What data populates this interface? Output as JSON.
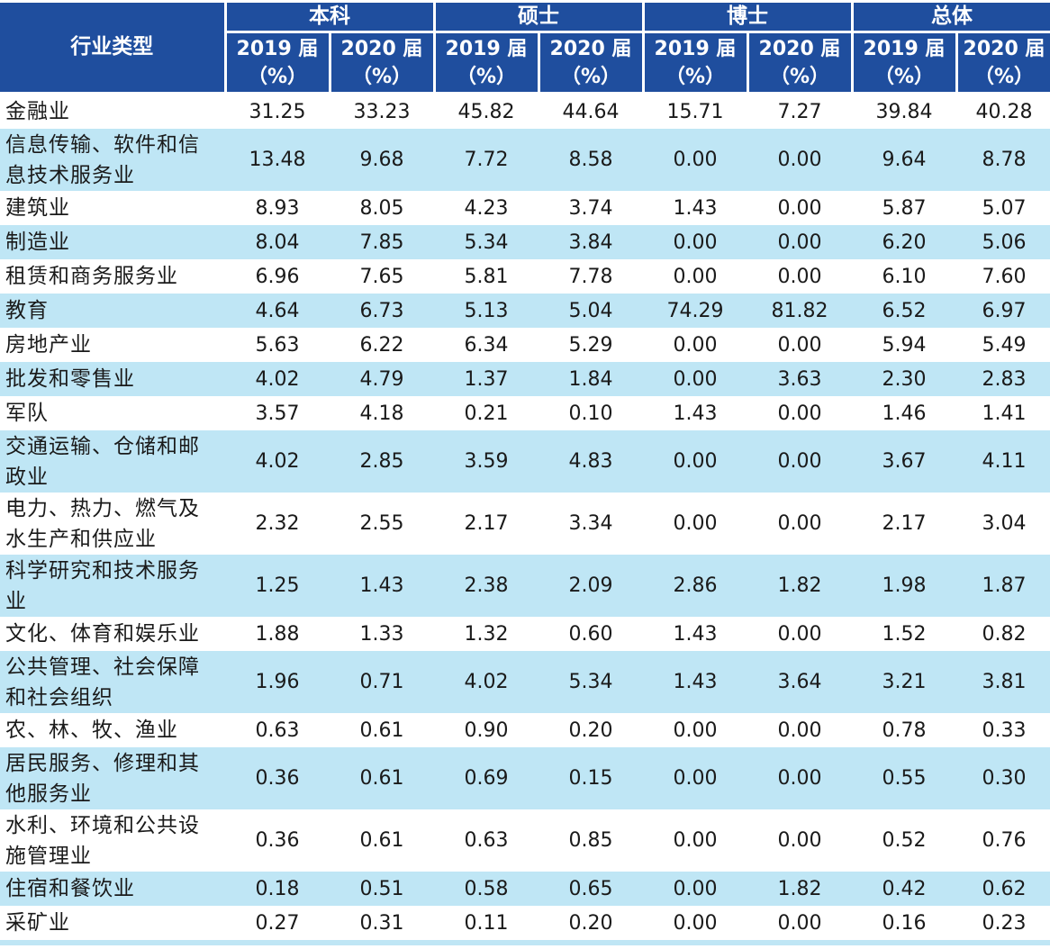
{
  "table": {
    "header": {
      "label": "行业类型",
      "groups": [
        "本科",
        "硕士",
        "博士",
        "总体"
      ],
      "sub": [
        {
          "year": "2019 届",
          "unit": "（%）"
        },
        {
          "year": "2020 届",
          "unit": "（%）"
        },
        {
          "year": "2019 届",
          "unit": "（%）"
        },
        {
          "year": "2020 届",
          "unit": "（%）"
        },
        {
          "year": "2019 届",
          "unit": "（%）"
        },
        {
          "year": "2020 届",
          "unit": "（%）"
        },
        {
          "year": "2019 届",
          "unit": "（%）"
        },
        {
          "year": "2020 届",
          "unit": "（%）"
        }
      ]
    },
    "rows": [
      {
        "label": "金融业",
        "values": [
          "31.25",
          "33.23",
          "45.82",
          "44.64",
          "15.71",
          "7.27",
          "39.84",
          "40.28"
        ]
      },
      {
        "label": "信息传输、软件和信息技术服务业",
        "values": [
          "13.48",
          "9.68",
          "7.72",
          "8.58",
          "0.00",
          "0.00",
          "9.64",
          "8.78"
        ]
      },
      {
        "label": "建筑业",
        "values": [
          "8.93",
          "8.05",
          "4.23",
          "3.74",
          "1.43",
          "0.00",
          "5.87",
          "5.07"
        ]
      },
      {
        "label": "制造业",
        "values": [
          "8.04",
          "7.85",
          "5.34",
          "3.84",
          "0.00",
          "0.00",
          "6.20",
          "5.06"
        ]
      },
      {
        "label": "租赁和商务服务业",
        "values": [
          "6.96",
          "7.65",
          "5.81",
          "7.78",
          "0.00",
          "0.00",
          "6.10",
          "7.60"
        ]
      },
      {
        "label": "教育",
        "values": [
          "4.64",
          "6.73",
          "5.13",
          "5.04",
          "74.29",
          "81.82",
          "6.52",
          "6.97"
        ]
      },
      {
        "label": "房地产业",
        "values": [
          "5.63",
          "6.22",
          "6.34",
          "5.29",
          "0.00",
          "0.00",
          "5.94",
          "5.49"
        ]
      },
      {
        "label": "批发和零售业",
        "values": [
          "4.02",
          "4.79",
          "1.37",
          "1.84",
          "0.00",
          "3.63",
          "2.30",
          "2.83"
        ]
      },
      {
        "label": "军队",
        "values": [
          "3.57",
          "4.18",
          "0.21",
          "0.10",
          "1.43",
          "0.00",
          "1.46",
          "1.41"
        ]
      },
      {
        "label": "交通运输、仓储和邮政业",
        "values": [
          "4.02",
          "2.85",
          "3.59",
          "4.83",
          "0.00",
          "0.00",
          "3.67",
          "4.11"
        ]
      },
      {
        "label": "电力、热力、燃气及水生产和供应业",
        "values": [
          "2.32",
          "2.55",
          "2.17",
          "3.34",
          "0.00",
          "0.00",
          "2.17",
          "3.04"
        ]
      },
      {
        "label": "科学研究和技术服务业",
        "values": [
          "1.25",
          "1.43",
          "2.38",
          "2.09",
          "2.86",
          "1.82",
          "1.98",
          "1.87"
        ]
      },
      {
        "label": "文化、体育和娱乐业",
        "values": [
          "1.88",
          "1.33",
          "1.32",
          "0.60",
          "1.43",
          "0.00",
          "1.52",
          "0.82"
        ]
      },
      {
        "label": "公共管理、社会保障和社会组织",
        "values": [
          "1.96",
          "0.71",
          "4.02",
          "5.34",
          "1.43",
          "3.64",
          "3.21",
          "3.81"
        ]
      },
      {
        "label": "农、林、牧、渔业",
        "values": [
          "0.63",
          "0.61",
          "0.90",
          "0.20",
          "0.00",
          "0.00",
          "0.78",
          "0.33"
        ]
      },
      {
        "label": "居民服务、修理和其他服务业",
        "values": [
          "0.36",
          "0.61",
          "0.69",
          "0.15",
          "0.00",
          "0.00",
          "0.55",
          "0.30"
        ]
      },
      {
        "label": "水利、环境和公共设施管理业",
        "values": [
          "0.36",
          "0.61",
          "0.63",
          "0.85",
          "0.00",
          "0.00",
          "0.52",
          "0.76"
        ]
      },
      {
        "label": "住宿和餐饮业",
        "values": [
          "0.18",
          "0.51",
          "0.58",
          "0.65",
          "0.00",
          "1.82",
          "0.42",
          "0.62"
        ]
      },
      {
        "label": "采矿业",
        "values": [
          "0.27",
          "0.31",
          "0.11",
          "0.20",
          "0.00",
          "0.00",
          "0.16",
          "0.23"
        ]
      }
    ]
  },
  "colors": {
    "header_bg": "#1f4e9e",
    "header_text": "#ffffff",
    "stripe_bg": "#bfe6f5",
    "row_bg": "#ffffff"
  }
}
